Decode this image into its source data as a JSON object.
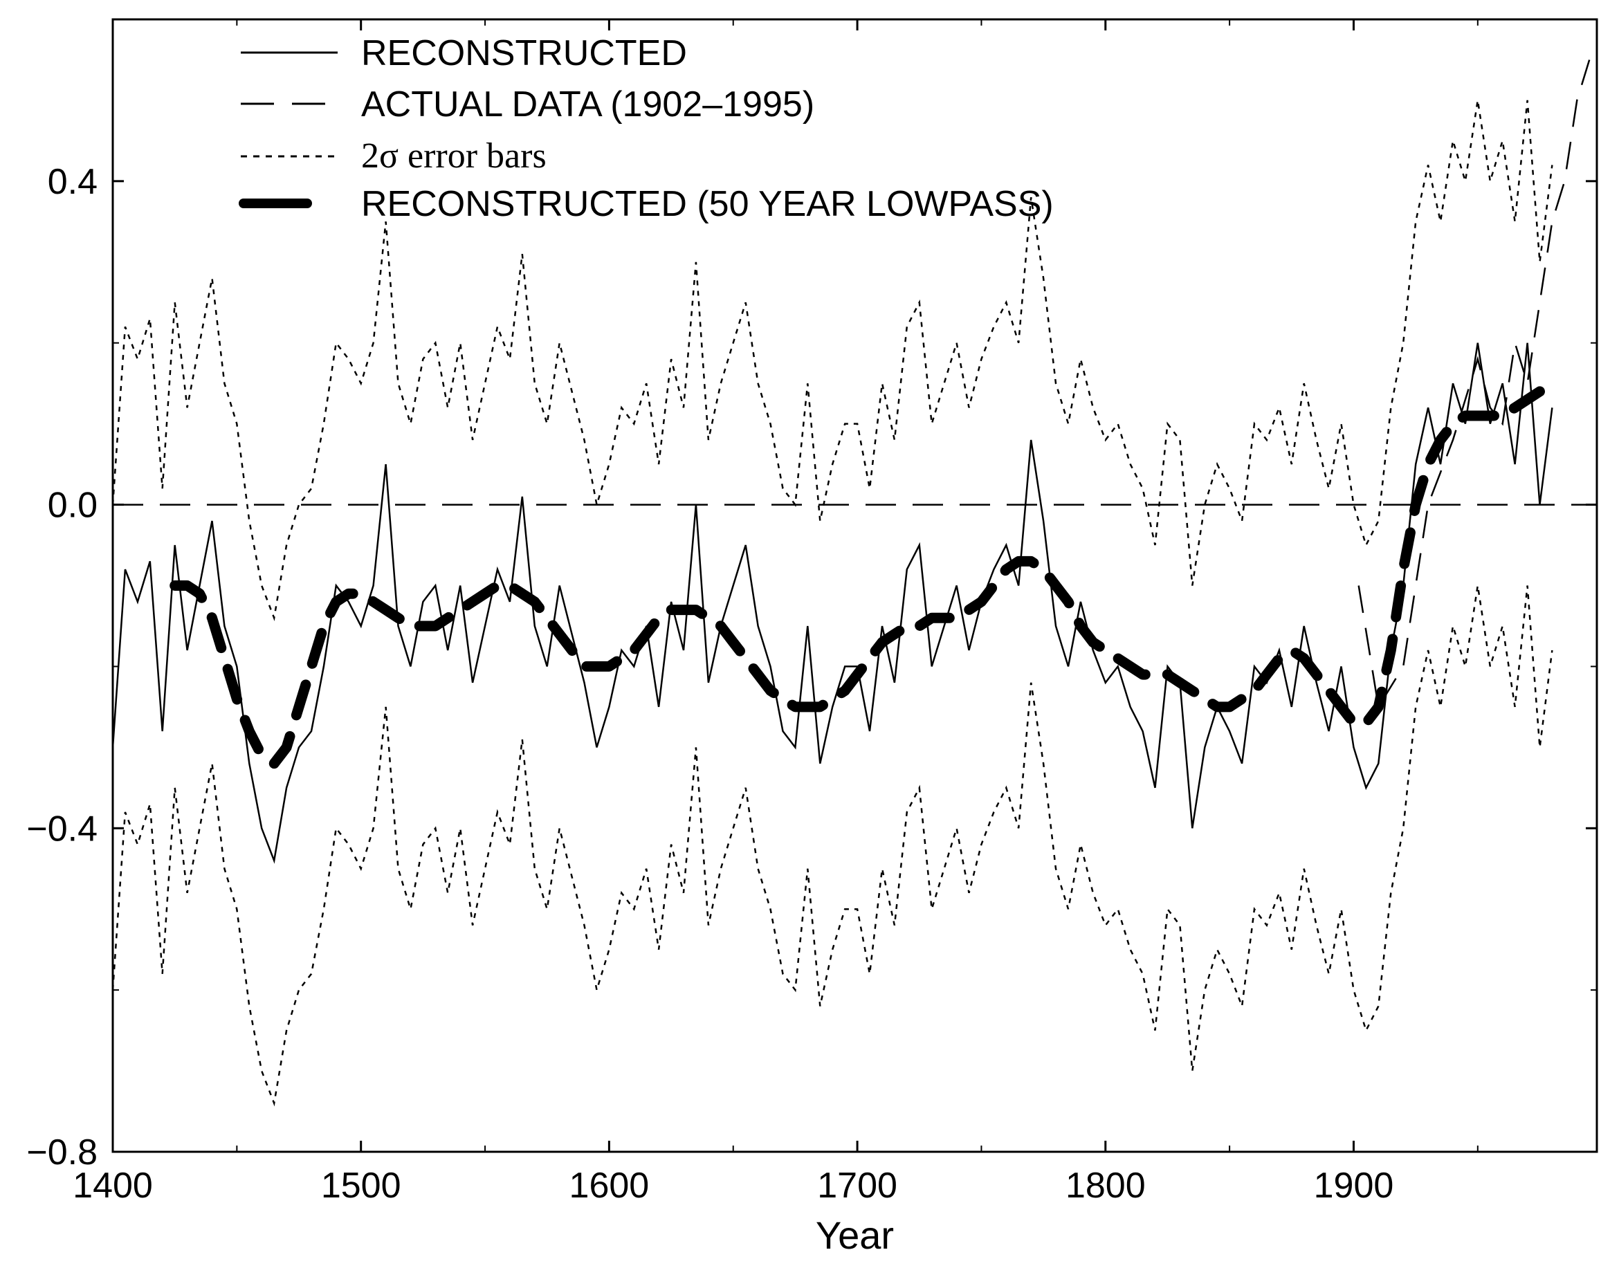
{
  "chart_data": {
    "type": "line",
    "title": "",
    "xlabel": "Year",
    "ylabel": "",
    "xlim": [
      1400,
      1998
    ],
    "ylim": [
      -0.8,
      0.6
    ],
    "xticks": [
      1400,
      1500,
      1600,
      1700,
      1800,
      1900
    ],
    "xtick_labels": [
      "1400",
      "1500",
      "1600",
      "1700",
      "1800",
      "1900"
    ],
    "yticks": [
      -0.8,
      -0.4,
      0.0,
      0.4
    ],
    "ytick_labels": [
      "−0.8",
      "−0.4",
      "0.0",
      "0.4"
    ],
    "grid": false,
    "legend_position": "top-left",
    "legend": [
      {
        "label": "RECONSTRUCTED",
        "style": "solid-thin"
      },
      {
        "label": "ACTUAL DATA (1902–1995)",
        "style": "long-dash"
      },
      {
        "label": "2σ error bars",
        "style": "dotted"
      },
      {
        "label": "RECONSTRUCTED (50 YEAR LOWPASS)",
        "style": "thick-dash"
      }
    ],
    "reference_line": {
      "y": 0.0,
      "style": "long-dash"
    },
    "error_band_halfwidth": 0.3,
    "series": [
      {
        "style": "solid-thin",
        "x": [
          1400,
          1405,
          1410,
          1415,
          1420,
          1425,
          1430,
          1435,
          1440,
          1445,
          1450,
          1455,
          1460,
          1465,
          1470,
          1475,
          1480,
          1485,
          1490,
          1495,
          1500,
          1505,
          1510,
          1515,
          1520,
          1525,
          1530,
          1535,
          1540,
          1545,
          1550,
          1555,
          1560,
          1565,
          1570,
          1575,
          1580,
          1585,
          1590,
          1595,
          1600,
          1605,
          1610,
          1615,
          1620,
          1625,
          1630,
          1635,
          1640,
          1645,
          1650,
          1655,
          1660,
          1665,
          1670,
          1675,
          1680,
          1685,
          1690,
          1695,
          1700,
          1705,
          1710,
          1715,
          1720,
          1725,
          1730,
          1735,
          1740,
          1745,
          1750,
          1755,
          1760,
          1765,
          1770,
          1775,
          1780,
          1785,
          1790,
          1795,
          1800,
          1805,
          1810,
          1815,
          1820,
          1825,
          1830,
          1835,
          1840,
          1845,
          1850,
          1855,
          1860,
          1865,
          1870,
          1875,
          1880,
          1885,
          1890,
          1895,
          1900,
          1905,
          1910,
          1915,
          1920,
          1925,
          1930,
          1935,
          1940,
          1945,
          1950,
          1955,
          1960,
          1965,
          1970,
          1975,
          1980
        ],
        "y": [
          -0.3,
          -0.08,
          -0.12,
          -0.07,
          -0.28,
          -0.05,
          -0.18,
          -0.1,
          -0.02,
          -0.15,
          -0.2,
          -0.32,
          -0.4,
          -0.44,
          -0.35,
          -0.3,
          -0.28,
          -0.2,
          -0.1,
          -0.12,
          -0.15,
          -0.1,
          0.05,
          -0.15,
          -0.2,
          -0.12,
          -0.1,
          -0.18,
          -0.1,
          -0.22,
          -0.15,
          -0.08,
          -0.12,
          0.01,
          -0.15,
          -0.2,
          -0.1,
          -0.16,
          -0.22,
          -0.3,
          -0.25,
          -0.18,
          -0.2,
          -0.15,
          -0.25,
          -0.12,
          -0.18,
          0.0,
          -0.22,
          -0.15,
          -0.1,
          -0.05,
          -0.15,
          -0.2,
          -0.28,
          -0.3,
          -0.15,
          -0.32,
          -0.25,
          -0.2,
          -0.2,
          -0.28,
          -0.15,
          -0.22,
          -0.08,
          -0.05,
          -0.2,
          -0.15,
          -0.1,
          -0.18,
          -0.12,
          -0.08,
          -0.05,
          -0.1,
          0.08,
          -0.02,
          -0.15,
          -0.2,
          -0.12,
          -0.18,
          -0.22,
          -0.2,
          -0.25,
          -0.28,
          -0.35,
          -0.2,
          -0.22,
          -0.4,
          -0.3,
          -0.25,
          -0.28,
          -0.32,
          -0.2,
          -0.22,
          -0.18,
          -0.25,
          -0.15,
          -0.22,
          -0.28,
          -0.2,
          -0.3,
          -0.35,
          -0.32,
          -0.18,
          -0.1,
          0.05,
          0.12,
          0.05,
          0.15,
          0.1,
          0.2,
          0.1,
          0.15,
          0.05,
          0.2,
          0.0,
          0.12
        ]
      },
      {
        "style": "long-dash",
        "x": [
          1902,
          1910,
          1920,
          1930,
          1940,
          1950,
          1955,
          1960,
          1965,
          1970,
          1975,
          1980,
          1985,
          1990,
          1995
        ],
        "y": [
          -0.1,
          -0.25,
          -0.2,
          0.0,
          0.08,
          0.18,
          0.12,
          0.1,
          0.2,
          0.15,
          0.25,
          0.35,
          0.4,
          0.5,
          0.55
        ]
      },
      {
        "style": "thick-dash",
        "x": [
          1425,
          1430,
          1435,
          1440,
          1445,
          1450,
          1455,
          1460,
          1465,
          1470,
          1475,
          1480,
          1485,
          1490,
          1495,
          1500,
          1505,
          1510,
          1515,
          1520,
          1525,
          1530,
          1535,
          1540,
          1545,
          1550,
          1555,
          1560,
          1565,
          1570,
          1575,
          1580,
          1585,
          1590,
          1595,
          1600,
          1605,
          1610,
          1615,
          1620,
          1625,
          1630,
          1635,
          1640,
          1645,
          1650,
          1655,
          1660,
          1665,
          1670,
          1675,
          1680,
          1685,
          1690,
          1695,
          1700,
          1705,
          1710,
          1715,
          1720,
          1725,
          1730,
          1735,
          1740,
          1745,
          1750,
          1755,
          1760,
          1765,
          1770,
          1775,
          1780,
          1785,
          1790,
          1795,
          1800,
          1805,
          1810,
          1815,
          1820,
          1825,
          1830,
          1835,
          1840,
          1845,
          1850,
          1855,
          1860,
          1865,
          1870,
          1875,
          1880,
          1885,
          1890,
          1895,
          1900,
          1905,
          1910,
          1915,
          1920,
          1925,
          1930,
          1935,
          1940,
          1945,
          1950,
          1955,
          1960,
          1965,
          1970,
          1975
        ],
        "y": [
          -0.1,
          -0.1,
          -0.11,
          -0.14,
          -0.19,
          -0.24,
          -0.28,
          -0.31,
          -0.32,
          -0.3,
          -0.25,
          -0.2,
          -0.15,
          -0.12,
          -0.11,
          -0.11,
          -0.12,
          -0.13,
          -0.14,
          -0.15,
          -0.15,
          -0.15,
          -0.14,
          -0.13,
          -0.12,
          -0.11,
          -0.1,
          -0.1,
          -0.11,
          -0.12,
          -0.14,
          -0.16,
          -0.18,
          -0.2,
          -0.2,
          -0.2,
          -0.19,
          -0.18,
          -0.16,
          -0.14,
          -0.13,
          -0.13,
          -0.13,
          -0.14,
          -0.15,
          -0.17,
          -0.19,
          -0.21,
          -0.23,
          -0.24,
          -0.25,
          -0.25,
          -0.25,
          -0.24,
          -0.23,
          -0.21,
          -0.19,
          -0.17,
          -0.16,
          -0.15,
          -0.15,
          -0.14,
          -0.14,
          -0.14,
          -0.13,
          -0.12,
          -0.1,
          -0.08,
          -0.07,
          -0.07,
          -0.08,
          -0.1,
          -0.12,
          -0.15,
          -0.17,
          -0.18,
          -0.19,
          -0.2,
          -0.21,
          -0.21,
          -0.21,
          -0.22,
          -0.23,
          -0.24,
          -0.25,
          -0.25,
          -0.24,
          -0.23,
          -0.21,
          -0.19,
          -0.18,
          -0.19,
          -0.21,
          -0.23,
          -0.25,
          -0.27,
          -0.27,
          -0.25,
          -0.18,
          -0.08,
          0.0,
          0.05,
          0.08,
          0.1,
          0.11,
          0.11,
          0.11,
          0.11,
          0.12,
          0.13,
          0.14
        ]
      }
    ]
  }
}
